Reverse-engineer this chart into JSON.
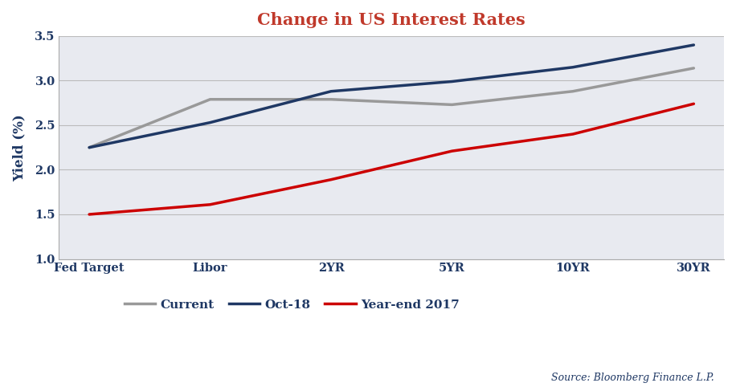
{
  "title": "Change in US Interest Rates",
  "title_color": "#C0392B",
  "xlabel": "",
  "ylabel": "Yield (%)",
  "ylabel_color": "#1F3864",
  "categories": [
    "Fed Target",
    "Libor",
    "2YR",
    "5YR",
    "10YR",
    "30YR"
  ],
  "series": {
    "Current": {
      "values": [
        2.25,
        2.79,
        2.79,
        2.73,
        2.88,
        3.14
      ],
      "color": "#999999",
      "linewidth": 2.5
    },
    "Oct-18": {
      "values": [
        2.25,
        2.53,
        2.88,
        2.99,
        3.15,
        3.4
      ],
      "color": "#1F3864",
      "linewidth": 2.5
    },
    "Year-end 2017": {
      "values": [
        1.5,
        1.61,
        1.89,
        2.21,
        2.4,
        2.74
      ],
      "color": "#CC0000",
      "linewidth": 2.5
    }
  },
  "ylim": [
    1.0,
    3.5
  ],
  "yticks": [
    1.0,
    1.5,
    2.0,
    2.5,
    3.0,
    3.5
  ],
  "grid_color": "#BBBBBB",
  "plot_bg_color": "#E8EAF0",
  "background_color": "#FFFFFF",
  "source_text": "Source: Bloomberg Finance L.P.",
  "source_color": "#1F3864",
  "tick_label_color": "#1F3864",
  "legend_order": [
    "Current",
    "Oct-18",
    "Year-end 2017"
  ]
}
